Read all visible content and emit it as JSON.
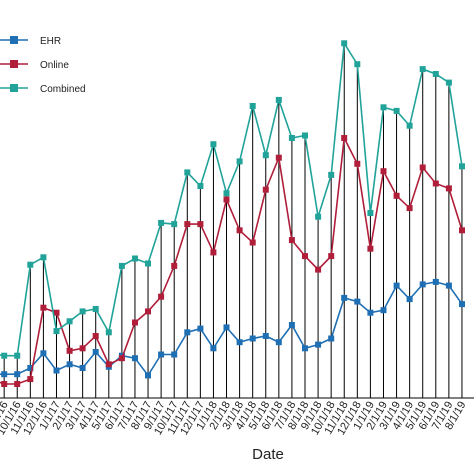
{
  "chart_data": {
    "type": "line",
    "xlabel": "Date",
    "ylabel": "",
    "title": "",
    "legend_position": "top-left",
    "grid": false,
    "x": [
      "7/1/16",
      "8/1/16",
      "9/1/16",
      "10/1/16",
      "11/1/16",
      "12/1/16",
      "1/1/17",
      "2/1/17",
      "3/1/17",
      "4/1/17",
      "5/1/17",
      "6/1/17",
      "7/1/17",
      "8/1/17",
      "9/1/17",
      "10/1/17",
      "11/1/17",
      "12/1/17",
      "1/1/18",
      "2/1/18",
      "3/1/18",
      "4/1/18",
      "5/1/18",
      "6/1/18",
      "7/1/18",
      "8/1/18",
      "9/1/18",
      "10/1/18",
      "11/1/18",
      "12/1/18",
      "1/1/19",
      "2/1/19",
      "3/1/19",
      "4/1/19",
      "5/1/19",
      "6/1/19",
      "7/1/19",
      "8/1/19"
    ],
    "x_tick_labels": [
      "7/1/16",
      "8/1/16",
      "9/1/16",
      "10/1/16",
      "11/1/16",
      "12/1/16",
      "1/1/17",
      "2/1/17",
      "3/1/17",
      "4/1/17",
      "5/1/17",
      "6/1/17",
      "7/1/17",
      "8/1/17",
      "9/1/17",
      "10/1/17",
      "11/1/17",
      "12/1/17",
      "1/1/18",
      "2/1/18",
      "3/1/18",
      "4/1/18",
      "5/1/18",
      "6/1/18",
      "7/1/18",
      "8/1/18",
      "9/1/18",
      "10/1/18",
      "11/1/18",
      "12/1/18",
      "1/1/19",
      "2/1/19",
      "3/1/19",
      "4/1/19",
      "5/1/19",
      "6/1/19",
      "7/1/19",
      "8/1/19"
    ],
    "ylim": [
      0,
      300
    ],
    "series": [
      {
        "name": "EHR",
        "color": "#1f6fb4",
        "values": [
          8,
          8,
          8,
          8,
          13,
          25,
          11,
          16,
          13,
          26,
          14,
          23,
          21,
          7,
          24,
          24,
          42,
          45,
          29,
          46,
          34,
          37,
          39,
          34,
          48,
          29,
          32,
          37,
          70,
          67,
          58,
          60,
          80,
          69,
          81,
          83,
          80,
          65
        ]
      },
      {
        "name": "Online",
        "color": "#b01e3a",
        "values": [
          4,
          4,
          0,
          0,
          4,
          62,
          58,
          27,
          29,
          39,
          16,
          21,
          50,
          59,
          71,
          96,
          130,
          130,
          107,
          150,
          125,
          115,
          158,
          184,
          117,
          104,
          93,
          104,
          200,
          179,
          110,
          173,
          153,
          143,
          176,
          163,
          159,
          125
        ]
      },
      {
        "name": "Combined",
        "color": "#21a39a",
        "values": [
          25,
          25,
          23,
          23,
          97,
          103,
          43,
          51,
          59,
          61,
          42,
          96,
          102,
          98,
          131,
          130,
          172,
          161,
          195,
          155,
          181,
          226,
          186,
          231,
          200,
          202,
          136,
          170,
          277,
          260,
          139,
          225,
          222,
          210,
          256,
          252,
          245,
          177
        ]
      }
    ]
  },
  "legend": {
    "items": [
      {
        "label": "EHR",
        "color": "#1f6fb4"
      },
      {
        "label": "Online",
        "color": "#b01e3a"
      },
      {
        "label": "Combined",
        "color": "#21a39a"
      }
    ]
  },
  "colors": {
    "droplines": "#000000",
    "axis": "#000000"
  }
}
